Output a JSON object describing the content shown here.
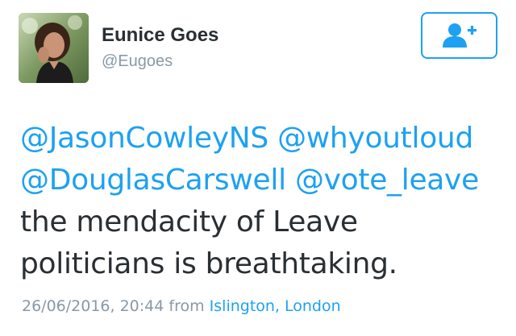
{
  "user": {
    "display_name": "Eunice Goes",
    "handle": "@Eugoes"
  },
  "follow_button": {
    "icon": "follow-user-icon",
    "color": "#1da1f2"
  },
  "tweet": {
    "lines": [
      [
        {
          "text": "@JasonCowleyNS",
          "type": "mention"
        },
        {
          "text": " ",
          "type": "text"
        },
        {
          "text": "@whyoutloud",
          "type": "mention"
        }
      ],
      [
        {
          "text": "@DouglasCarswell",
          "type": "mention"
        },
        {
          "text": " ",
          "type": "text"
        },
        {
          "text": "@vote_leave",
          "type": "mention"
        }
      ],
      [
        {
          "text": "the mendacity of Leave",
          "type": "text"
        }
      ],
      [
        {
          "text": "politicians is breathtaking.",
          "type": "text"
        }
      ]
    ],
    "timestamp": "26/06/2016, 20:44",
    "from_label": "from",
    "location": "Islington, London"
  },
  "colors": {
    "link": "#1da1f2",
    "text": "#292f33",
    "muted": "#8899a6"
  }
}
